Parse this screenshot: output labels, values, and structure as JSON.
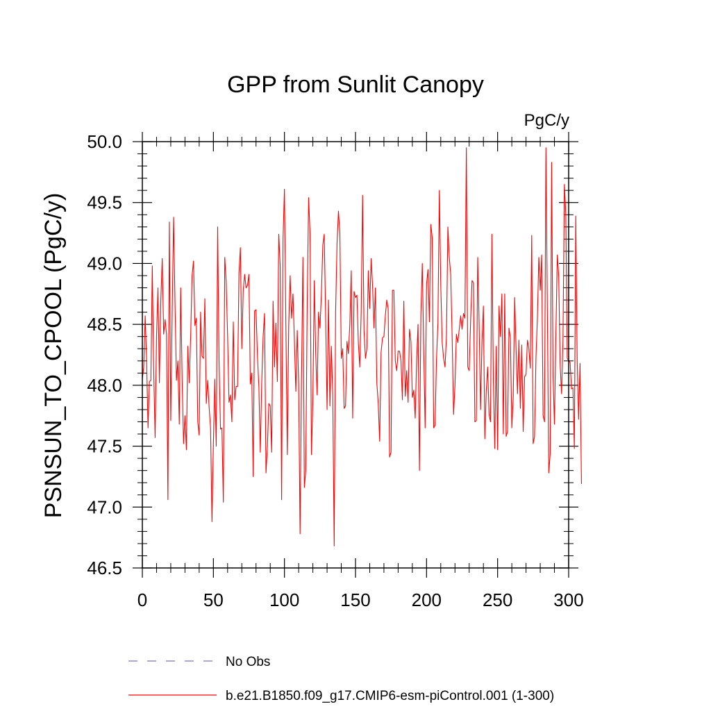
{
  "chart_data": {
    "type": "line",
    "title": "GPP from Sunlit Canopy",
    "units": "PgC/y",
    "ylabel": "PSNSUN_TO_CPOOL  (PgC/y)",
    "xlabel": "",
    "xlim": [
      0,
      300
    ],
    "ylim": [
      46.5,
      50.0
    ],
    "xticks": [
      0,
      50,
      100,
      150,
      200,
      250,
      300
    ],
    "xtick_labels": [
      "0",
      "50",
      "100",
      "150",
      "200",
      "250",
      "300"
    ],
    "yticks": [
      46.5,
      47.0,
      47.5,
      48.0,
      48.5,
      49.0,
      49.5,
      50.0
    ],
    "ytick_labels": [
      "46.5",
      "47.0",
      "47.5",
      "48.0",
      "48.5",
      "49.0",
      "49.5",
      "50.0"
    ],
    "grid": false,
    "legend": [
      {
        "label": "No Obs",
        "color": "#7a6fd0",
        "style": "dashed"
      },
      {
        "label": "b.e21.B1850.f09_g17.CMIP6-esm-piControl.001 (1-300)",
        "color": "#ff0000",
        "style": "solid"
      }
    ],
    "series": [
      {
        "name": "b.e21.B1850.f09_g17.CMIP6-esm-piControl.001 (1-300)",
        "color": "#ff0000",
        "x_start": 0,
        "x_step": 1,
        "values": [
          48.05,
          48.15,
          48.57,
          48.2,
          47.65,
          48.03,
          48.04,
          48.98,
          48.12,
          47.57,
          48.41,
          48.8,
          48.02,
          48.7,
          49.04,
          48.42,
          48.54,
          48.42,
          47.06,
          49.34,
          47.71,
          48.6,
          49.38,
          48.67,
          48.04,
          48.2,
          47.68,
          48.8,
          48.05,
          47.52,
          47.75,
          47.47,
          48.32,
          48.02,
          48.4,
          48.9,
          49.02,
          48.49,
          48.55,
          47.7,
          47.59,
          48.6,
          48.24,
          48.22,
          48.71,
          47.85,
          48.04,
          47.82,
          47.65,
          46.88,
          47.52,
          48.05,
          47.5,
          49.3,
          48.19,
          47.64,
          47.65,
          47.04,
          49.05,
          48.85,
          48.4,
          47.86,
          47.92,
          47.7,
          48.52,
          47.88,
          47.99,
          47.99,
          48.92,
          49.13,
          48.3,
          48.78,
          48.91,
          48.8,
          48.82,
          48.91,
          48.01,
          48.1,
          47.25,
          48.61,
          48.62,
          48.24,
          47.99,
          47.45,
          48.02,
          48.4,
          48.59,
          47.28,
          47.49,
          47.85,
          47.83,
          47.45,
          48.69,
          48.15,
          48.51,
          48.03,
          49.24,
          48.98,
          47.06,
          49.2,
          49.61,
          48.5,
          47.43,
          48.49,
          48.9,
          48.55,
          48.75,
          48.37,
          47.95,
          48.45,
          48.01,
          46.78,
          48.04,
          49.05,
          47.16,
          47.3,
          48.65,
          49.54,
          49.25,
          47.43,
          47.88,
          48.86,
          48.26,
          47.92,
          48.6,
          48.47,
          48.75,
          49.15,
          49.24,
          48.55,
          47.8,
          48.7,
          47.83,
          48.32,
          47.92,
          46.68,
          48.6,
          49.16,
          49.43,
          49.25,
          48.22,
          48.3,
          47.81,
          47.83,
          48.36,
          48.26,
          48.5,
          48.94,
          47.73,
          48.77,
          48.72,
          48.74,
          48.35,
          48.15,
          48.6,
          49.56,
          48.45,
          48.22,
          48.3,
          48.94,
          48.63,
          49.04,
          48.82,
          48.47,
          48.8,
          48.02,
          47.85,
          47.54,
          48.27,
          48.39,
          48.4,
          48.57,
          48.7,
          48.63,
          47.41,
          47.45,
          48.78,
          48.78,
          48.2,
          48.12,
          48.28,
          48.28,
          48.2,
          47.88,
          48.69,
          47.91,
          48.12,
          47.86,
          48.46,
          48.36,
          47.9,
          47.96,
          47.73,
          48.2,
          48.5,
          47.3,
          48.58,
          49.0,
          48.3,
          47.65,
          48.83,
          48.95,
          48.52,
          49.32,
          49.21,
          47.65,
          47.67,
          48.22,
          48.51,
          49.6,
          48.82,
          48.35,
          48.22,
          48.15,
          48.4,
          49.3,
          49.05,
          48.91,
          48.4,
          47.76,
          48.0,
          48.42,
          48.35,
          48.46,
          48.57,
          48.46,
          48.59,
          48.55,
          49.95,
          48.15,
          48.12,
          48.53,
          48.86,
          48.84,
          47.7,
          47.71,
          49.05,
          48.5,
          47.8,
          48.36,
          48.65,
          47.56,
          47.95,
          48.15,
          47.76,
          47.7,
          49.24,
          48.05,
          47.48,
          48.32,
          47.47,
          48.65,
          48.4,
          48.75,
          47.6,
          48.75,
          47.58,
          47.62,
          48.47,
          48.39,
          47.65,
          47.9,
          48.72,
          48.3,
          47.93,
          48.37,
          47.81,
          48.33,
          47.62,
          48.07,
          48.09,
          48.37,
          48.3,
          48.14,
          49.23,
          47.52,
          47.58,
          48.23,
          48.55,
          49.05,
          48.78,
          49.07,
          47.75,
          47.7,
          49.95,
          48.63,
          47.28,
          47.44,
          49.83,
          48.08,
          47.68,
          48.41,
          49.07,
          48.9,
          48.17,
          47.93,
          48.37,
          49.65,
          49.4,
          48.22,
          48.2,
          48.19,
          47.97,
          47.98,
          47.48,
          49.39,
          48.2,
          47.72,
          48.18,
          47.19
        ]
      }
    ]
  }
}
